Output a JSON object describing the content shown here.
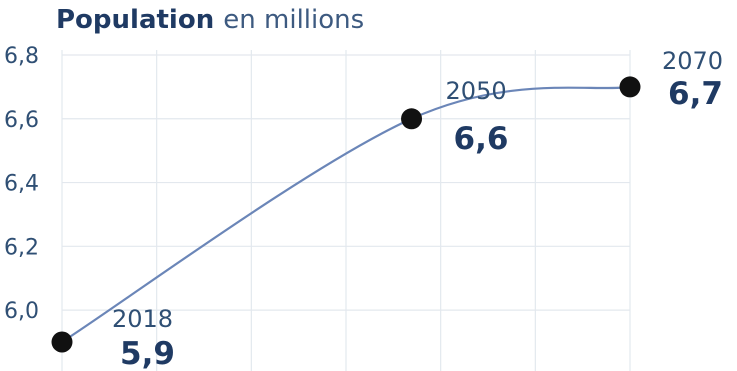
{
  "chart_data": {
    "type": "line",
    "title": "Population",
    "subtitle": "en millions",
    "x": [
      2018,
      2050,
      2070
    ],
    "values": [
      5.9,
      6.6,
      6.7
    ],
    "year_labels": [
      "2018",
      "2050",
      "2070"
    ],
    "value_labels": [
      "5,9",
      "6,6",
      "6,7"
    ],
    "yticks": [
      6.0,
      6.2,
      6.4,
      6.6,
      6.8
    ],
    "ytick_labels": [
      "6,0",
      "6,2",
      "6,4",
      "6,6",
      "6,8"
    ],
    "ylim": [
      5.9,
      6.8
    ],
    "xlim": [
      2018,
      2070
    ],
    "grid": true,
    "line_color": "#6b86b8",
    "marker_color": "#111111",
    "text_color": "#1f3a63",
    "grid_color": "#e3e8ee"
  }
}
